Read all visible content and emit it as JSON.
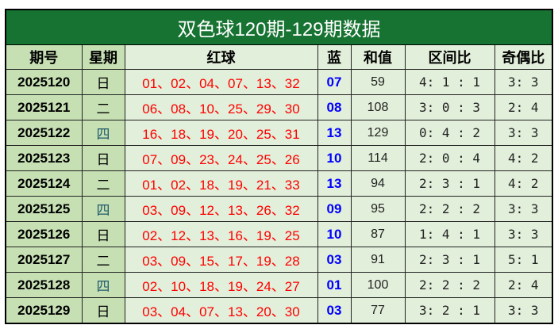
{
  "title": "双色球120期-129期数据",
  "headers": [
    "期号",
    "星期",
    "红球",
    "蓝",
    "和值",
    "区间比",
    "奇偶比"
  ],
  "rows": [
    {
      "issue": "2025120",
      "weekday": "日",
      "red": "01、02、04、07、13、32",
      "blue": "07",
      "sum": "59",
      "zone": "4: 1 : 1",
      "parity": "3: 3"
    },
    {
      "issue": "2025121",
      "weekday": "二",
      "red": "06、08、10、25、29、30",
      "blue": "08",
      "sum": "108",
      "zone": "3: 0 : 3",
      "parity": "2: 4"
    },
    {
      "issue": "2025122",
      "weekday": "四",
      "red": "16、18、19、20、25、31",
      "blue": "13",
      "sum": "129",
      "zone": "0: 4 : 2",
      "parity": "3: 3"
    },
    {
      "issue": "2025123",
      "weekday": "日",
      "red": "07、09、23、24、25、26",
      "blue": "10",
      "sum": "114",
      "zone": "2: 0 : 4",
      "parity": "4: 2"
    },
    {
      "issue": "2025124",
      "weekday": "二",
      "red": "01、02、18、19、21、33",
      "blue": "13",
      "sum": "94",
      "zone": "2: 3 : 1",
      "parity": "4: 2"
    },
    {
      "issue": "2025125",
      "weekday": "四",
      "red": "03、09、12、13、26、32",
      "blue": "09",
      "sum": "95",
      "zone": "2: 2 : 2",
      "parity": "3: 3"
    },
    {
      "issue": "2025126",
      "weekday": "日",
      "red": "02、12、13、16、19、25",
      "blue": "10",
      "sum": "87",
      "zone": "1: 4 : 1",
      "parity": "3: 3"
    },
    {
      "issue": "2025127",
      "weekday": "二",
      "red": "03、09、15、17、19、28",
      "blue": "03",
      "sum": "91",
      "zone": "2: 3 : 1",
      "parity": "5: 1"
    },
    {
      "issue": "2025128",
      "weekday": "四",
      "red": "02、10、18、19、24、27",
      "blue": "01",
      "sum": "100",
      "zone": "2: 2 : 2",
      "parity": "2: 4"
    },
    {
      "issue": "2025129",
      "weekday": "日",
      "red": "03、04、07、13、20、30",
      "blue": "03",
      "sum": "77",
      "zone": "3: 2 : 1",
      "parity": "3: 3"
    }
  ]
}
